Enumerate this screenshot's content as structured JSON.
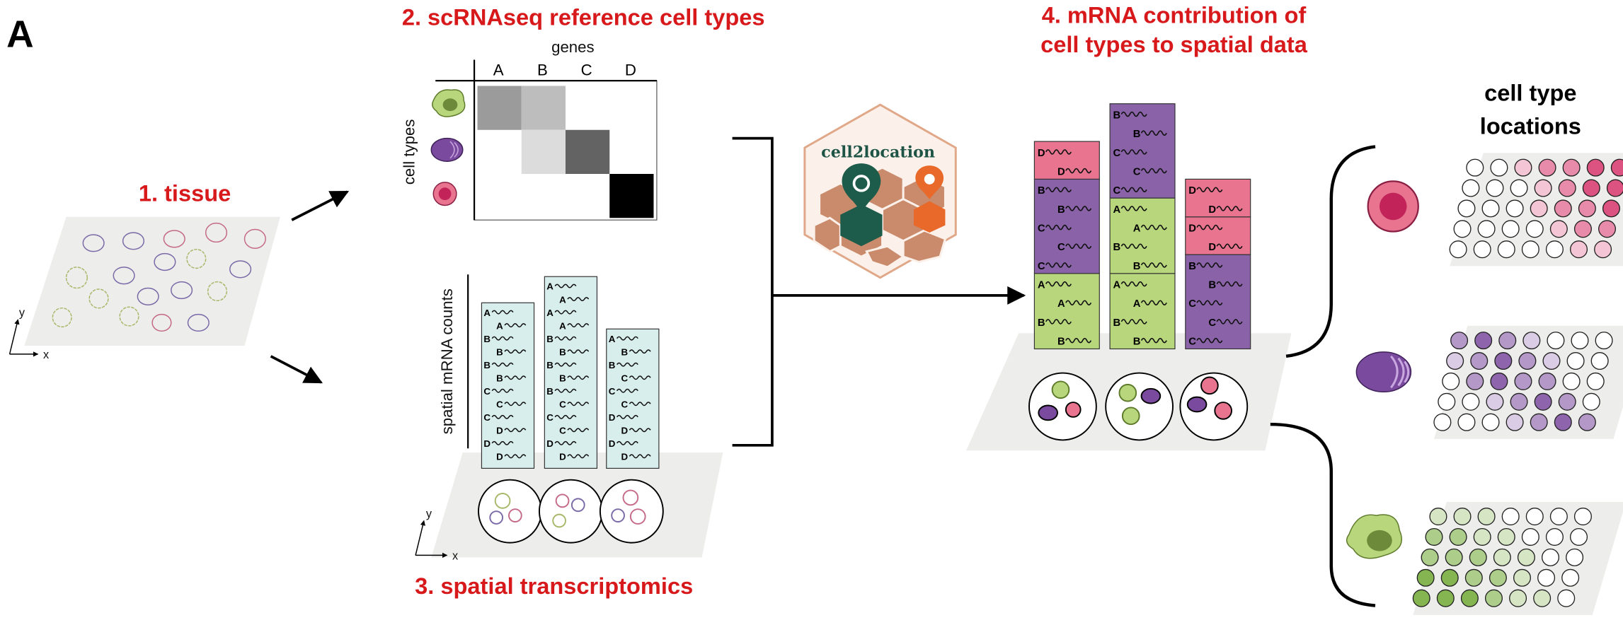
{
  "panel_label": "A",
  "tissue": {
    "title": "1. tissue",
    "axes": {
      "x": "x",
      "y": "y"
    }
  },
  "reference": {
    "title": "2. scRNAseq reference cell types",
    "x_title": "genes",
    "columns": [
      "A",
      "B",
      "C",
      "D"
    ],
    "y_title": "cell types",
    "shades": [
      [
        "#9b9b9b",
        "#bdbdbd",
        null,
        null
      ],
      [
        null,
        "#dcdcdc",
        "#636363",
        null
      ],
      [
        null,
        null,
        null,
        "#000000"
      ]
    ]
  },
  "spatial": {
    "title": "3. spatial transcriptomics",
    "y_title": "spatial mRNA counts",
    "axes": {
      "x": "x",
      "y": "y"
    },
    "color": "#d8eeed",
    "spots": [
      {
        "letters": [
          "A",
          "A",
          "B",
          "B",
          "B",
          "B",
          "C",
          "C",
          "C",
          "D",
          "D",
          "D"
        ]
      },
      {
        "letters": [
          "A",
          "A",
          "A",
          "A",
          "B",
          "B",
          "B",
          "B",
          "B",
          "C",
          "C",
          "C",
          "D",
          "D"
        ]
      },
      {
        "letters": [
          "A",
          "B",
          "B",
          "C",
          "C",
          "C",
          "D",
          "D",
          "D",
          "D"
        ]
      }
    ]
  },
  "logo": {
    "text": "cell2location"
  },
  "contribution": {
    "title": [
      "4. mRNA contribution of",
      "cell types to spatial data"
    ],
    "spots": [
      {
        "segments": [
          {
            "color": "#b8d77c",
            "letters": [
              "A",
              "A",
              "B",
              "B"
            ]
          },
          {
            "color": "#8a62a8",
            "letters": [
              "B",
              "B",
              "C",
              "C",
              "C"
            ]
          },
          {
            "color": "#e8748f",
            "letters": [
              "D",
              "D"
            ]
          }
        ]
      },
      {
        "segments": [
          {
            "color": "#b8d77c",
            "letters": [
              "A",
              "A",
              "B",
              "B"
            ]
          },
          {
            "color": "#b8d77c",
            "letters": [
              "A",
              "A",
              "B",
              "B"
            ]
          },
          {
            "color": "#8a62a8",
            "letters": [
              "B",
              "B",
              "C",
              "C",
              "C"
            ]
          }
        ]
      },
      {
        "segments": [
          {
            "color": "#8a62a8",
            "letters": [
              "B",
              "B",
              "C",
              "C",
              "C"
            ]
          },
          {
            "color": "#e8748f",
            "letters": [
              "D",
              "D"
            ]
          },
          {
            "color": "#e8748f",
            "letters": [
              "D",
              "D"
            ]
          }
        ]
      }
    ]
  },
  "locations": {
    "title": [
      "cell type",
      "locations"
    ],
    "maps": [
      {
        "color": "#d6336a",
        "levels": [
          [
            0,
            0,
            1,
            2,
            2,
            3,
            3
          ],
          [
            0,
            0,
            0,
            1,
            2,
            3,
            3
          ],
          [
            0,
            0,
            0,
            1,
            2,
            2,
            3
          ],
          [
            0,
            0,
            0,
            0,
            1,
            2,
            2
          ],
          [
            0,
            0,
            0,
            0,
            0,
            1,
            1
          ]
        ]
      },
      {
        "color": "#7a4a9e",
        "levels": [
          [
            2,
            3,
            2,
            1,
            0,
            0,
            0
          ],
          [
            1,
            2,
            3,
            2,
            1,
            0,
            0
          ],
          [
            0,
            2,
            3,
            2,
            2,
            0,
            0
          ],
          [
            0,
            0,
            1,
            2,
            3,
            2,
            0
          ],
          [
            0,
            0,
            0,
            1,
            2,
            3,
            2
          ]
        ]
      },
      {
        "color": "#6fa832",
        "levels": [
          [
            1,
            1,
            1,
            0,
            0,
            0,
            0
          ],
          [
            2,
            2,
            1,
            1,
            0,
            0,
            0
          ],
          [
            2,
            2,
            2,
            1,
            1,
            0,
            0
          ],
          [
            3,
            3,
            2,
            2,
            1,
            0,
            0
          ],
          [
            3,
            3,
            3,
            2,
            1,
            1,
            0
          ]
        ]
      }
    ]
  }
}
